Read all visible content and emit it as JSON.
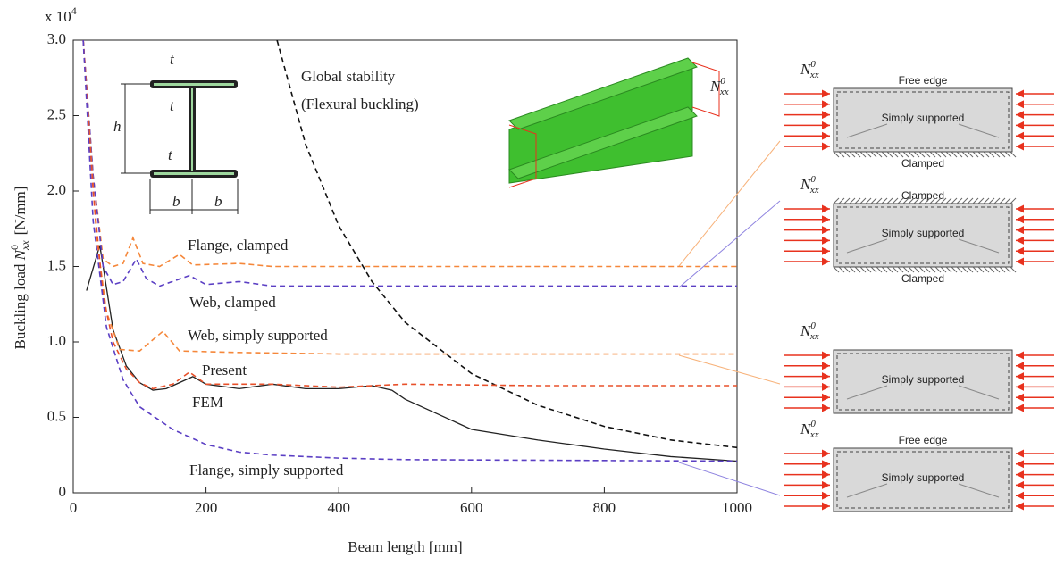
{
  "chart_data": {
    "type": "line",
    "multiplier": {
      "base": "x 10",
      "exp": "4"
    },
    "x_label": "Beam length [mm]",
    "y_label": {
      "prefix": "Buckling load",
      "symbol": "N",
      "sub": "xx",
      "sup": "0",
      "unit": "[N/mm]"
    },
    "xlim": [
      0,
      1000
    ],
    "xticks": [
      0,
      200,
      400,
      600,
      800,
      1000
    ],
    "ylim": [
      0,
      3
    ],
    "yticks": [
      0,
      0.5,
      {
        "value": 1,
        "label": "1.0"
      },
      1.5,
      {
        "value": 2,
        "label": "2.0"
      },
      2.5,
      {
        "value": 3,
        "label": "3.0"
      }
    ],
    "series": [
      {
        "name": "FEM",
        "color": "#222222",
        "dash": false,
        "x": [
          20,
          40,
          60,
          80,
          100,
          120,
          140,
          160,
          180,
          200,
          250,
          300,
          350,
          400,
          450,
          480,
          500,
          600,
          700,
          800,
          900,
          1000
        ],
        "values": [
          1.34,
          1.64,
          1.08,
          0.84,
          0.73,
          0.68,
          0.69,
          0.73,
          0.77,
          0.72,
          0.69,
          0.72,
          0.69,
          0.69,
          0.71,
          0.68,
          0.62,
          0.42,
          0.35,
          0.29,
          0.24,
          0.21
        ]
      },
      {
        "name": "Global stability",
        "color": "#111111",
        "dash": true,
        "x": [
          307,
          350,
          400,
          450,
          500,
          600,
          700,
          800,
          900,
          1000
        ],
        "values": [
          3.0,
          2.31,
          1.77,
          1.4,
          1.13,
          0.79,
          0.58,
          0.44,
          0.35,
          0.3
        ]
      },
      {
        "name": "Flange, clamped",
        "color": "#f5873a",
        "dash": true,
        "x": [
          15,
          30,
          45,
          60,
          75,
          90,
          105,
          130,
          160,
          180,
          250,
          300,
          400,
          500,
          700,
          1000
        ],
        "values": [
          3.0,
          2.1,
          1.55,
          1.5,
          1.52,
          1.69,
          1.52,
          1.5,
          1.58,
          1.51,
          1.52,
          1.5,
          1.5,
          1.5,
          1.5,
          1.5
        ]
      },
      {
        "name": "Web, clamped",
        "color": "#5b3fc4",
        "dash": true,
        "x": [
          15,
          30,
          45,
          60,
          75,
          95,
          110,
          130,
          175,
          200,
          250,
          300,
          400,
          500,
          700,
          1000
        ],
        "values": [
          3.0,
          2.1,
          1.5,
          1.38,
          1.4,
          1.55,
          1.42,
          1.37,
          1.44,
          1.38,
          1.4,
          1.37,
          1.37,
          1.37,
          1.37,
          1.37
        ]
      },
      {
        "name": "Web, simply supported",
        "color": "#f5873a",
        "dash": true,
        "x": [
          15,
          35,
          50,
          70,
          100,
          135,
          160,
          250,
          400,
          600,
          1000
        ],
        "values": [
          3.0,
          1.7,
          1.2,
          0.95,
          0.94,
          1.07,
          0.94,
          0.93,
          0.92,
          0.92,
          0.92
        ]
      },
      {
        "name": "Present",
        "color": "#e8502a",
        "dash": true,
        "x": [
          15,
          30,
          45,
          60,
          80,
          100,
          120,
          150,
          175,
          200,
          300,
          400,
          500,
          700,
          1000
        ],
        "values": [
          3.0,
          2.0,
          1.3,
          1.0,
          0.82,
          0.73,
          0.69,
          0.72,
          0.8,
          0.72,
          0.72,
          0.7,
          0.72,
          0.71,
          0.71
        ]
      },
      {
        "name": "Flange, simply supported",
        "color": "#5b3fc4",
        "dash": true,
        "x": [
          15,
          30,
          50,
          75,
          100,
          150,
          200,
          250,
          300,
          400,
          500,
          1000
        ],
        "values": [
          3.0,
          1.8,
          1.1,
          0.75,
          0.57,
          0.42,
          0.32,
          0.27,
          0.25,
          0.23,
          0.22,
          0.21
        ]
      }
    ],
    "annotations": [
      "(Flexural buckling)"
    ]
  },
  "inset": {
    "beam_labels": [
      "t",
      "h",
      "t",
      "t",
      "b",
      "b"
    ],
    "load": {
      "symbol": "N",
      "sub": "xx",
      "sup": "0"
    }
  },
  "panels": [
    {
      "load": {
        "symbol": "N",
        "sub": "xx",
        "sup": "0"
      },
      "top": "Free edge",
      "center": "Simply supported",
      "bottom": "Clamped"
    },
    {
      "load": {
        "symbol": "N",
        "sub": "xx",
        "sup": "0"
      },
      "top": "Clamped",
      "center": "Simply supported",
      "bottom": "Clamped"
    },
    {
      "load": {
        "symbol": "N",
        "sub": "xx",
        "sup": "0"
      },
      "center": "Simply supported"
    },
    {
      "load": {
        "symbol": "N",
        "sub": "xx",
        "sup": "0"
      },
      "top": "Free edge",
      "center": "Simply supported"
    }
  ]
}
